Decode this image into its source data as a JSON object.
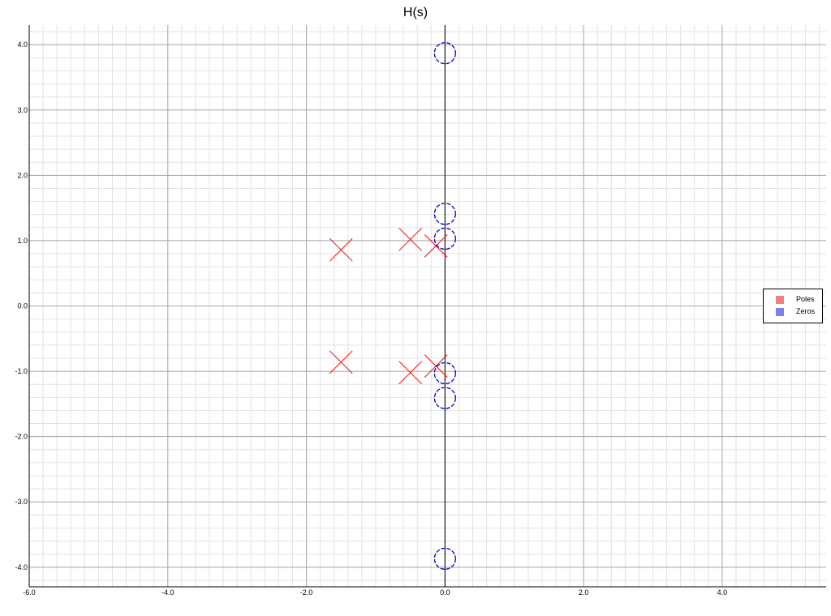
{
  "chart_data": {
    "type": "scatter",
    "title": "H(s)",
    "xlabel": "",
    "ylabel": "",
    "xlim": [
      -6.0,
      5.5
    ],
    "ylim": [
      -4.3,
      4.3
    ],
    "x_ticks": [
      -6.0,
      -4.0,
      -2.0,
      0.0,
      2.0,
      4.0
    ],
    "x_tick_labels": [
      "-6.0",
      "-4.0",
      "-2.0",
      "0.0",
      "2.0",
      "4.0"
    ],
    "y_ticks": [
      4.0,
      3.0,
      2.0,
      1.0,
      0.0,
      -1.0,
      -2.0,
      -3.0,
      -4.0
    ],
    "y_tick_labels": [
      "4.0",
      "3.0",
      "2.0",
      "1.0",
      "0.0",
      "-1.0",
      "-2.0",
      "-3.0",
      "-4.0"
    ],
    "grid": true,
    "legend_position": "right",
    "series": [
      {
        "name": "Poles",
        "marker": "x",
        "color": "#ff0000",
        "legend_color": "#f08080",
        "points": [
          [
            -1.5,
            0.86
          ],
          [
            -0.5,
            1.02
          ],
          [
            -0.13,
            0.92
          ],
          [
            -1.5,
            -0.86
          ],
          [
            -0.5,
            -1.02
          ],
          [
            -0.13,
            -0.92
          ]
        ]
      },
      {
        "name": "Zeros",
        "marker": "o",
        "color": "#0000cc",
        "legend_color": "#8080f0",
        "points": [
          [
            0.0,
            3.87
          ],
          [
            0.0,
            1.41
          ],
          [
            0.0,
            1.03
          ],
          [
            0.0,
            -1.03
          ],
          [
            0.0,
            -1.41
          ],
          [
            0.0,
            -3.87
          ]
        ]
      }
    ]
  }
}
